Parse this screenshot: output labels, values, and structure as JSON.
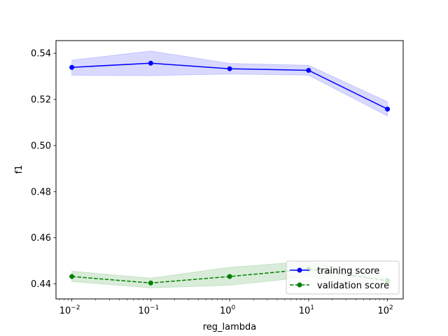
{
  "chart_data": {
    "type": "line",
    "title": "",
    "xlabel": "reg_lambda",
    "ylabel": "f1",
    "xscale": "log",
    "xlim": [
      0.0063,
      158
    ],
    "ylim": [
      0.4335,
      0.5455
    ],
    "x": [
      0.01,
      0.1,
      1,
      10,
      100
    ],
    "x_ticks": [
      {
        "value": 0.01,
        "base": "10",
        "exp": "−2"
      },
      {
        "value": 0.1,
        "base": "10",
        "exp": "−1"
      },
      {
        "value": 1,
        "base": "10",
        "exp": "0"
      },
      {
        "value": 10,
        "base": "10",
        "exp": "1"
      },
      {
        "value": 100,
        "base": "10",
        "exp": "2"
      }
    ],
    "y_ticks": [
      {
        "value": 0.44,
        "label": "0.44"
      },
      {
        "value": 0.46,
        "label": "0.46"
      },
      {
        "value": 0.48,
        "label": "0.48"
      },
      {
        "value": 0.5,
        "label": "0.50"
      },
      {
        "value": 0.52,
        "label": "0.52"
      },
      {
        "value": 0.54,
        "label": "0.54"
      }
    ],
    "grid": false,
    "legend_position": "lower-right",
    "series": [
      {
        "name": "training score",
        "values": [
          0.5339,
          0.5357,
          0.5333,
          0.5326,
          0.5158
        ],
        "band_upper": [
          0.537,
          0.541,
          0.5356,
          0.5348,
          0.519
        ],
        "band_lower": [
          0.5305,
          0.5303,
          0.531,
          0.5305,
          0.5128
        ],
        "color": "#0000ff",
        "band_color": "#0000ff",
        "linestyle": "solid",
        "marker": "circle"
      },
      {
        "name": "validation score",
        "values": [
          0.4432,
          0.4404,
          0.4432,
          0.4464,
          0.4414
        ],
        "band_upper": [
          0.4455,
          0.4425,
          0.4472,
          0.4498,
          0.443
        ],
        "band_lower": [
          0.441,
          0.4383,
          0.4394,
          0.443,
          0.4398
        ],
        "color": "#008000",
        "band_color": "#008000",
        "linestyle": "dashed",
        "marker": "circle"
      }
    ]
  }
}
